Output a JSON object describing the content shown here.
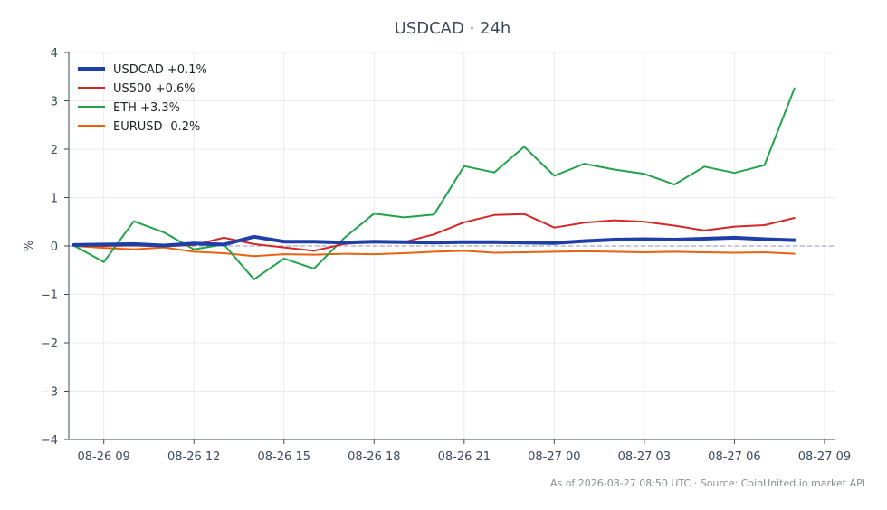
{
  "chart_data": {
    "type": "line",
    "title": "USDCAD · 24h",
    "ylabel": "%",
    "xlabel": "",
    "ylim": [
      -4,
      4
    ],
    "yticks": [
      4,
      3,
      2,
      1,
      0,
      -1,
      -2,
      -3,
      -4
    ],
    "ytick_labels": [
      "4",
      "3",
      "2",
      "1",
      "0",
      "−1",
      "−2",
      "−3",
      "−4"
    ],
    "xlim": [
      "2026-08-26 07:50",
      "2026-08-27 09:20"
    ],
    "xticks": [
      "2026-08-26 09:00",
      "2026-08-26 12:00",
      "2026-08-26 15:00",
      "2026-08-26 18:00",
      "2026-08-26 21:00",
      "2026-08-27 00:00",
      "2026-08-27 03:00",
      "2026-08-27 06:00",
      "2026-08-27 09:00"
    ],
    "xtick_labels": [
      "08-26 09",
      "08-26 12",
      "08-26 15",
      "08-26 18",
      "08-26 21",
      "08-27 00",
      "08-27 03",
      "08-27 06",
      "08-27 09"
    ],
    "x": [
      "2026-08-26 08:00",
      "2026-08-26 09:00",
      "2026-08-26 10:00",
      "2026-08-26 11:00",
      "2026-08-26 12:00",
      "2026-08-26 13:00",
      "2026-08-26 14:00",
      "2026-08-26 15:00",
      "2026-08-26 16:00",
      "2026-08-26 17:00",
      "2026-08-26 18:00",
      "2026-08-26 19:00",
      "2026-08-26 20:00",
      "2026-08-26 21:00",
      "2026-08-26 22:00",
      "2026-08-26 23:00",
      "2026-08-27 00:00",
      "2026-08-27 01:00",
      "2026-08-27 02:00",
      "2026-08-27 03:00",
      "2026-08-27 04:00",
      "2026-08-27 05:00",
      "2026-08-27 06:00",
      "2026-08-27 07:00",
      "2026-08-27 08:00"
    ],
    "zero_line": true,
    "grid": true,
    "legend_position": "top-left",
    "series": [
      {
        "name": "USDCAD +0.1%",
        "color": "#1f3fa8",
        "width": 4,
        "values": [
          0.02,
          0.03,
          0.04,
          0.01,
          0.05,
          0.03,
          0.19,
          0.09,
          0.09,
          0.07,
          0.09,
          0.08,
          0.07,
          0.08,
          0.08,
          0.07,
          0.06,
          0.1,
          0.13,
          0.14,
          0.13,
          0.15,
          0.17,
          0.14,
          0.12
        ]
      },
      {
        "name": "US500 +0.6%",
        "color": "#d62728",
        "width": 2,
        "values": [
          0.01,
          0.0,
          0.01,
          -0.01,
          0.02,
          0.17,
          0.04,
          -0.03,
          -0.1,
          0.04,
          0.1,
          0.08,
          0.24,
          0.49,
          0.64,
          0.66,
          0.38,
          0.48,
          0.53,
          0.5,
          0.42,
          0.32,
          0.4,
          0.43,
          0.58
        ]
      },
      {
        "name": "ETH +3.3%",
        "color": "#22a34a",
        "width": 2,
        "values": [
          0.01,
          -0.33,
          0.51,
          0.28,
          -0.07,
          0.03,
          -0.69,
          -0.26,
          -0.47,
          0.16,
          0.67,
          0.59,
          0.65,
          1.65,
          1.52,
          2.05,
          1.45,
          1.7,
          1.58,
          1.49,
          1.27,
          1.64,
          1.51,
          1.67,
          3.26
        ]
      },
      {
        "name": "EURUSD -0.2%",
        "color": "#e8620f",
        "width": 2,
        "values": [
          0.0,
          -0.04,
          -0.07,
          -0.03,
          -0.12,
          -0.15,
          -0.21,
          -0.17,
          -0.18,
          -0.16,
          -0.17,
          -0.15,
          -0.12,
          -0.1,
          -0.14,
          -0.13,
          -0.12,
          -0.11,
          -0.12,
          -0.13,
          -0.12,
          -0.13,
          -0.14,
          -0.13,
          -0.16
        ]
      }
    ],
    "footer": "As of 2026-08-27 08:50 UTC · Source: CoinUnited.io market API"
  }
}
